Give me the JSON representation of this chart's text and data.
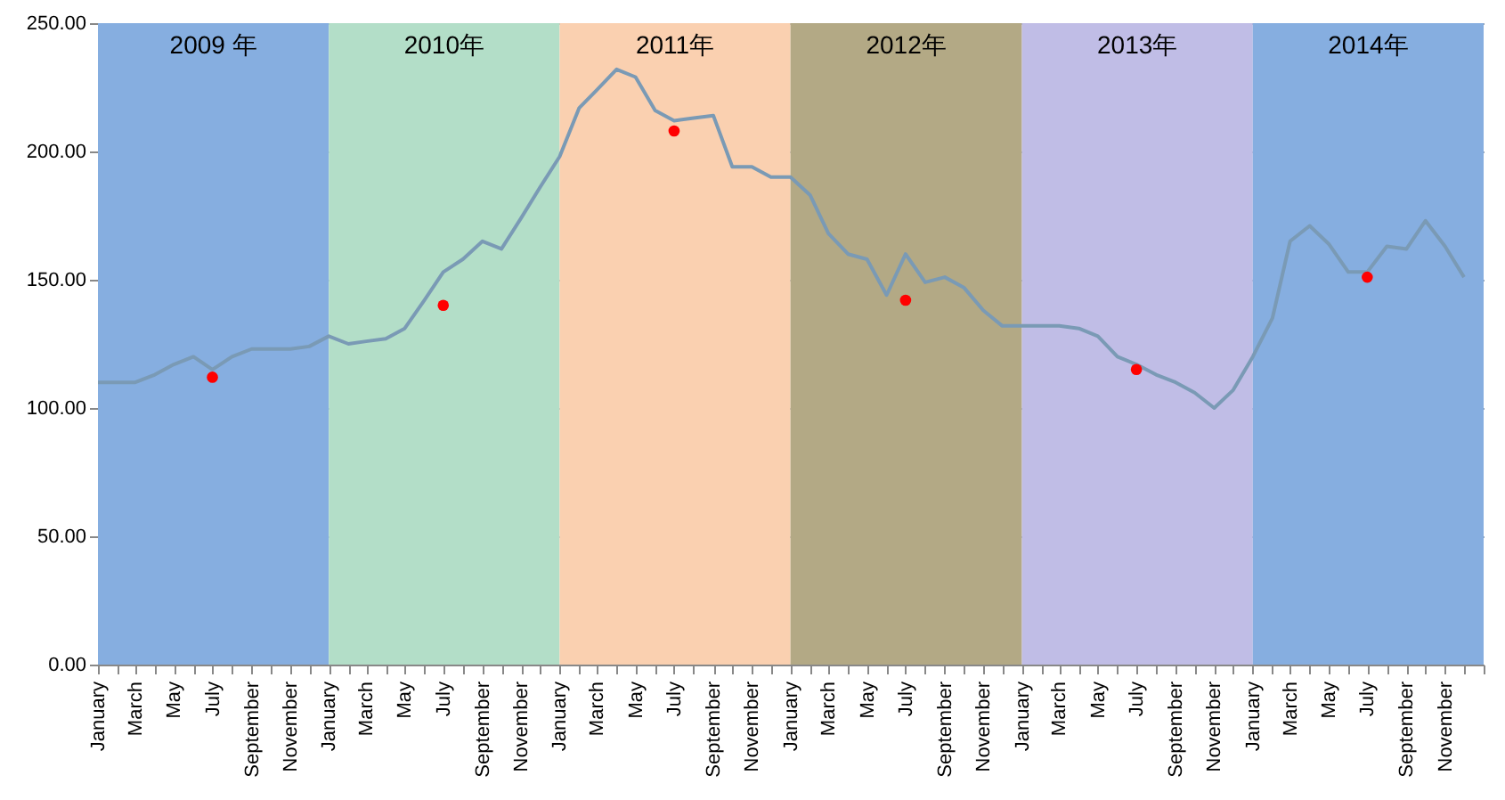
{
  "chart_data": {
    "type": "line",
    "x": [
      "2009-01",
      "2009-02",
      "2009-03",
      "2009-04",
      "2009-05",
      "2009-06",
      "2009-07",
      "2009-08",
      "2009-09",
      "2009-10",
      "2009-11",
      "2009-12",
      "2010-01",
      "2010-02",
      "2010-03",
      "2010-04",
      "2010-05",
      "2010-06",
      "2010-07",
      "2010-08",
      "2010-09",
      "2010-10",
      "2010-11",
      "2010-12",
      "2011-01",
      "2011-02",
      "2011-03",
      "2011-04",
      "2011-05",
      "2011-06",
      "2011-07",
      "2011-08",
      "2011-09",
      "2011-10",
      "2011-11",
      "2011-12",
      "2012-01",
      "2012-02",
      "2012-03",
      "2012-04",
      "2012-05",
      "2012-06",
      "2012-07",
      "2012-08",
      "2012-09",
      "2012-10",
      "2012-11",
      "2012-12",
      "2013-01",
      "2013-02",
      "2013-03",
      "2013-04",
      "2013-05",
      "2013-06",
      "2013-07",
      "2013-08",
      "2013-09",
      "2013-10",
      "2013-11",
      "2013-12",
      "2014-01",
      "2014-02",
      "2014-03",
      "2014-04",
      "2014-05",
      "2014-06",
      "2014-07",
      "2014-08",
      "2014-09",
      "2014-10",
      "2014-11",
      "2014-12"
    ],
    "series": [
      {
        "type": "line",
        "marker": "none",
        "color": "#7a9ab5",
        "values": [
          110,
          110,
          110,
          113,
          117,
          120,
          115,
          120,
          123,
          123,
          123,
          124,
          128,
          125,
          126,
          127,
          131,
          142,
          153,
          158,
          165,
          162,
          174,
          186,
          198,
          217,
          224,
          232,
          229,
          216,
          212,
          213,
          214,
          194,
          194,
          190,
          190,
          183,
          168,
          160,
          158,
          144,
          160,
          149,
          151,
          147,
          138,
          132,
          132,
          132,
          132,
          131,
          128,
          120,
          117,
          113,
          110,
          106,
          100,
          107,
          120,
          135,
          165,
          171,
          164,
          153,
          153,
          163,
          162,
          173,
          163,
          151
        ]
      },
      {
        "type": "scatter",
        "marker": "circle",
        "color": "#ff0000",
        "x": [
          "2009-07",
          "2010-07",
          "2011-07",
          "2012-07",
          "2013-07",
          "2014-07"
        ],
        "values": [
          112,
          140,
          208,
          142,
          115,
          151
        ]
      }
    ],
    "xlim": [
      "2009-01",
      "2015-01"
    ],
    "xticks": [
      {
        "value": "2009-01",
        "label": "January"
      },
      {
        "value": "2009-02",
        "label": null
      },
      {
        "value": "2009-03",
        "label": "March"
      },
      {
        "value": "2009-04",
        "label": null
      },
      {
        "value": "2009-05",
        "label": "May"
      },
      {
        "value": "2009-06",
        "label": null
      },
      {
        "value": "2009-07",
        "label": "July"
      },
      {
        "value": "2009-08",
        "label": null
      },
      {
        "value": "2009-09",
        "label": "September"
      },
      {
        "value": "2009-10",
        "label": null
      },
      {
        "value": "2009-11",
        "label": "November"
      },
      {
        "value": "2009-12",
        "label": null
      },
      {
        "value": "2010-01",
        "label": "January"
      },
      {
        "value": "2010-02",
        "label": null
      },
      {
        "value": "2010-03",
        "label": "March"
      },
      {
        "value": "2010-04",
        "label": null
      },
      {
        "value": "2010-05",
        "label": "May"
      },
      {
        "value": "2010-06",
        "label": null
      },
      {
        "value": "2010-07",
        "label": "July"
      },
      {
        "value": "2010-08",
        "label": null
      },
      {
        "value": "2010-09",
        "label": "September"
      },
      {
        "value": "2010-10",
        "label": null
      },
      {
        "value": "2010-11",
        "label": "November"
      },
      {
        "value": "2010-12",
        "label": null
      },
      {
        "value": "2011-01",
        "label": "January"
      },
      {
        "value": "2011-02",
        "label": null
      },
      {
        "value": "2011-03",
        "label": "March"
      },
      {
        "value": "2011-04",
        "label": null
      },
      {
        "value": "2011-05",
        "label": "May"
      },
      {
        "value": "2011-06",
        "label": null
      },
      {
        "value": "2011-07",
        "label": "July"
      },
      {
        "value": "2011-08",
        "label": null
      },
      {
        "value": "2011-09",
        "label": "September"
      },
      {
        "value": "2011-10",
        "label": null
      },
      {
        "value": "2011-11",
        "label": "November"
      },
      {
        "value": "2011-12",
        "label": null
      },
      {
        "value": "2012-01",
        "label": "January"
      },
      {
        "value": "2012-02",
        "label": null
      },
      {
        "value": "2012-03",
        "label": "March"
      },
      {
        "value": "2012-04",
        "label": null
      },
      {
        "value": "2012-05",
        "label": "May"
      },
      {
        "value": "2012-06",
        "label": null
      },
      {
        "value": "2012-07",
        "label": "July"
      },
      {
        "value": "2012-08",
        "label": null
      },
      {
        "value": "2012-09",
        "label": "September"
      },
      {
        "value": "2012-10",
        "label": null
      },
      {
        "value": "2012-11",
        "label": "November"
      },
      {
        "value": "2012-12",
        "label": null
      },
      {
        "value": "2013-01",
        "label": "January"
      },
      {
        "value": "2013-02",
        "label": null
      },
      {
        "value": "2013-03",
        "label": "March"
      },
      {
        "value": "2013-04",
        "label": null
      },
      {
        "value": "2013-05",
        "label": "May"
      },
      {
        "value": "2013-06",
        "label": null
      },
      {
        "value": "2013-07",
        "label": "July"
      },
      {
        "value": "2013-08",
        "label": null
      },
      {
        "value": "2013-09",
        "label": "September"
      },
      {
        "value": "2013-10",
        "label": null
      },
      {
        "value": "2013-11",
        "label": "November"
      },
      {
        "value": "2013-12",
        "label": null
      },
      {
        "value": "2014-01",
        "label": "January"
      },
      {
        "value": "2014-02",
        "label": null
      },
      {
        "value": "2014-03",
        "label": "March"
      },
      {
        "value": "2014-04",
        "label": null
      },
      {
        "value": "2014-05",
        "label": "May"
      },
      {
        "value": "2014-06",
        "label": null
      },
      {
        "value": "2014-07",
        "label": "July"
      },
      {
        "value": "2014-08",
        "label": null
      },
      {
        "value": "2014-09",
        "label": "September"
      },
      {
        "value": "2014-10",
        "label": null
      },
      {
        "value": "2014-11",
        "label": "November"
      },
      {
        "value": "2014-12",
        "label": null
      },
      {
        "value": "2015-01",
        "label": null
      }
    ],
    "ylim": [
      0,
      250
    ],
    "yticks": [
      {
        "value": 0,
        "label": "0.00"
      },
      {
        "value": 50,
        "label": "50.00"
      },
      {
        "value": 100,
        "label": "100.00"
      },
      {
        "value": 150,
        "label": "150.00"
      },
      {
        "value": 200,
        "label": "200.00"
      },
      {
        "value": 250,
        "label": "250.00"
      }
    ],
    "grid": "y",
    "bands": [
      {
        "axis": "x",
        "from": "2009-01",
        "to": "2010-01",
        "label": "2009 年",
        "color": "#86aee0"
      },
      {
        "axis": "x",
        "from": "2010-01",
        "to": "2011-01",
        "label": "2010年",
        "color": "#b3dec8"
      },
      {
        "axis": "x",
        "from": "2011-01",
        "to": "2012-01",
        "label": "2011年",
        "color": "#fad0b0"
      },
      {
        "axis": "x",
        "from": "2012-01",
        "to": "2013-01",
        "label": "2012年",
        "color": "#b3a985"
      },
      {
        "axis": "x",
        "from": "2013-01",
        "to": "2014-01",
        "label": "2013年",
        "color": "#c0bde6"
      },
      {
        "axis": "x",
        "from": "2014-01",
        "to": "2015-01",
        "label": "2014年",
        "color": "#86aee0"
      }
    ]
  }
}
